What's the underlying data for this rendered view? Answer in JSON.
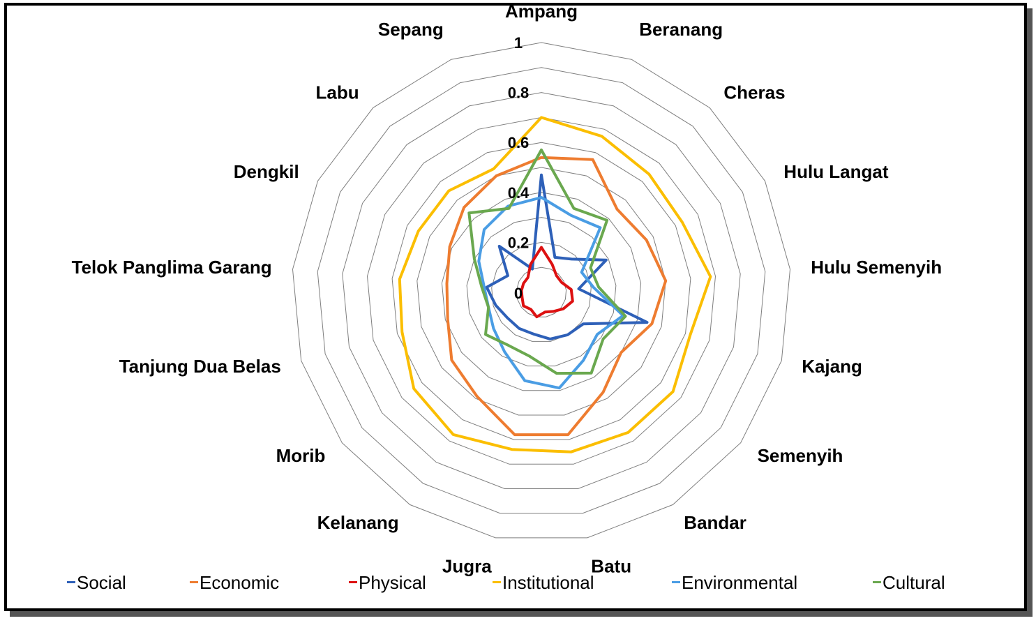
{
  "chart_data": {
    "type": "radar",
    "title": "",
    "rlim": [
      0,
      1
    ],
    "ticks": [
      "0",
      "0.2",
      "0.4",
      "0.6",
      "0.8",
      "1"
    ],
    "categories": [
      "Ampang",
      "Beranang",
      "Cheras",
      "Hulu Langat",
      "Hulu Semenyih",
      "Kajang",
      "Semenyih",
      "Bandar",
      "Batu",
      "Jugra",
      "Kelanang",
      "Morib",
      "Tanjung Dua Belas",
      "Telok Panglima Garang",
      "Dengkil",
      "Labu",
      "Sepang"
    ],
    "series": [
      {
        "name": "Social",
        "color": "#2e60b8",
        "values": [
          0.47,
          0.15,
          0.18,
          0.29,
          0.15,
          0.44,
          0.21,
          0.2,
          0.19,
          0.17,
          0.17,
          0.17,
          0.19,
          0.22,
          0.15,
          0.25,
          0.1
        ]
      },
      {
        "name": "Economic",
        "color": "#ee7c30",
        "values": [
          0.54,
          0.57,
          0.45,
          0.47,
          0.5,
          0.46,
          0.4,
          0.47,
          0.58,
          0.58,
          0.49,
          0.45,
          0.39,
          0.38,
          0.41,
          0.46,
          0.5
        ]
      },
      {
        "name": "Physical",
        "color": "#dd1111",
        "values": [
          0.18,
          0.12,
          0.09,
          0.09,
          0.12,
          0.13,
          0.11,
          0.09,
          0.08,
          0.1,
          0.08,
          0.09,
          0.08,
          0.08,
          0.08,
          0.08,
          0.12
        ]
      },
      {
        "name": "Institutional",
        "color": "#fbbe00",
        "values": [
          0.7,
          0.67,
          0.64,
          0.63,
          0.68,
          0.62,
          0.66,
          0.66,
          0.65,
          0.64,
          0.67,
          0.64,
          0.58,
          0.57,
          0.55,
          0.55,
          0.53
        ]
      },
      {
        "name": "Environmental",
        "color": "#4a9de4",
        "values": [
          0.38,
          0.33,
          0.35,
          0.18,
          0.21,
          0.34,
          0.28,
          0.32,
          0.39,
          0.36,
          0.28,
          0.24,
          0.22,
          0.23,
          0.28,
          0.34,
          0.37
        ]
      },
      {
        "name": "Cultural",
        "color": "#6aa84f",
        "values": [
          0.57,
          0.36,
          0.39,
          0.22,
          0.23,
          0.35,
          0.31,
          0.38,
          0.33,
          0.26,
          0.25,
          0.28,
          0.22,
          0.24,
          0.3,
          0.43,
          0.36
        ]
      }
    ],
    "grid": true,
    "legend": "bottom"
  }
}
